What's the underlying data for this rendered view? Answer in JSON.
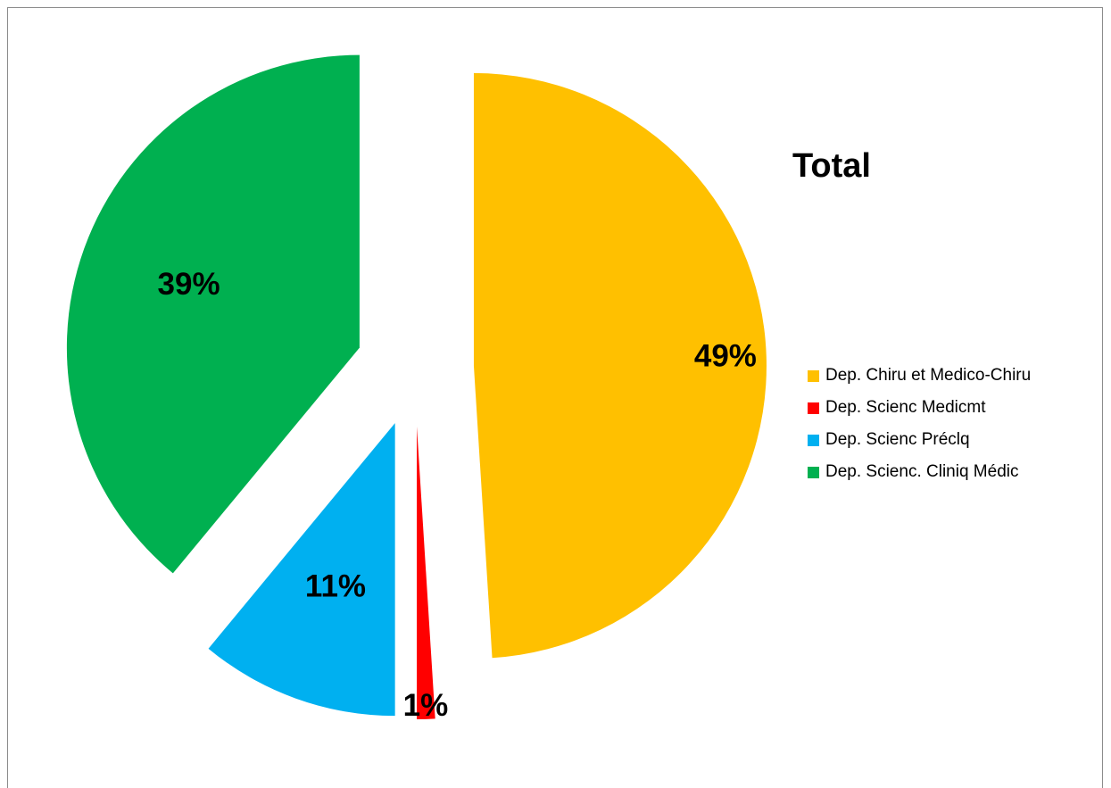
{
  "chart_data": {
    "type": "pie",
    "title": "Total",
    "categories": [
      "Dep. Chiru et Medico-Chiru",
      "Dep. Scienc Medicmt",
      "Dep. Scienc Préclq",
      "Dep. Scienc. Cliniq Médic"
    ],
    "values": [
      49,
      1,
      11,
      39
    ],
    "labels": [
      "49%",
      "1%",
      "11%",
      "39%"
    ],
    "colors": [
      "#FFC000",
      "#FF0000",
      "#00B0F0",
      "#00B050"
    ],
    "exploded": true,
    "legend_position": "right"
  }
}
